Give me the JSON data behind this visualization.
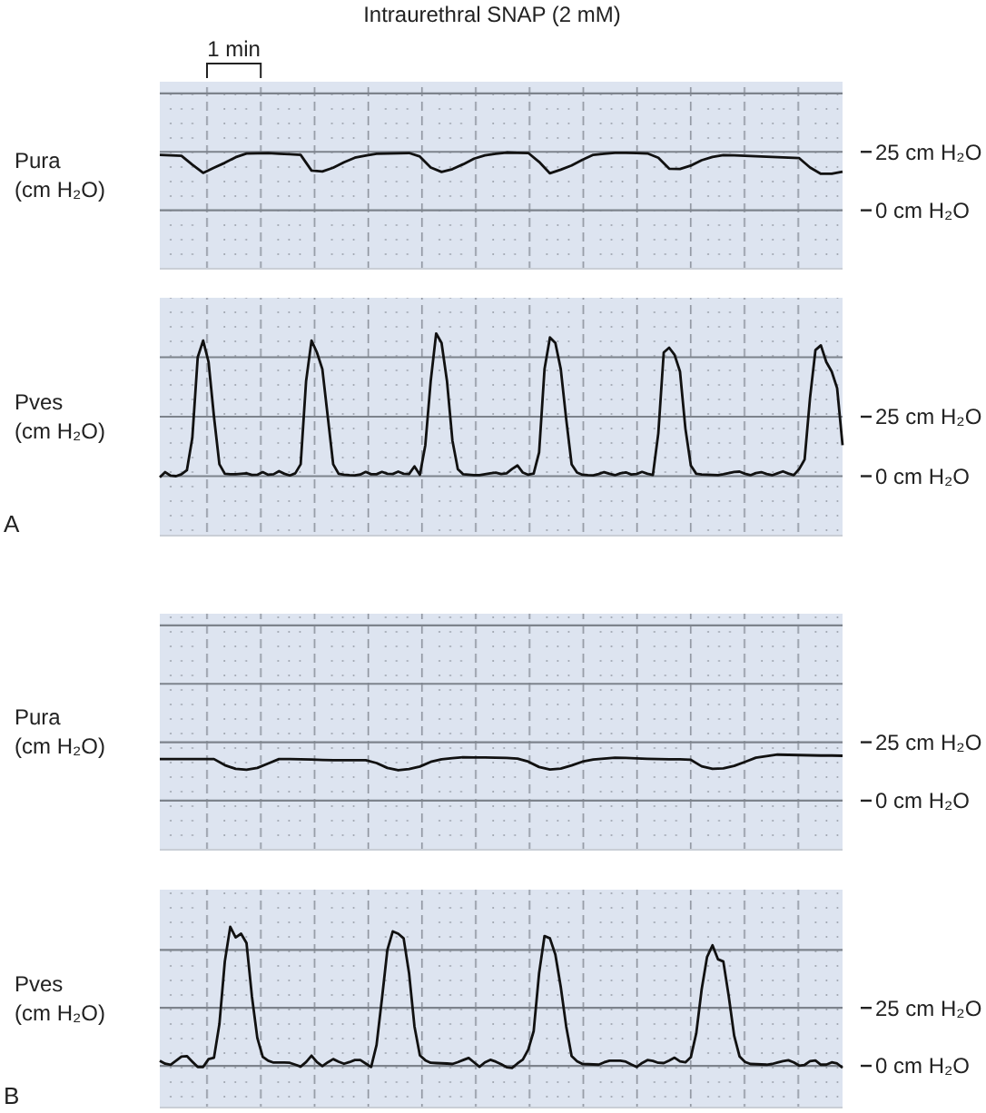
{
  "chart_data": [
    {
      "type": "line",
      "title": "Intraurethral SNAP (2 mM)",
      "ylabel": "Pura\n(cm H₂O)",
      "annotations": [
        "1 min"
      ],
      "grid": "y",
      "tick_labels": "y",
      "ylim": [
        -25,
        55
      ],
      "categories": [
        null,
        null,
        null,
        null,
        null,
        null,
        null,
        null,
        null,
        null,
        null,
        null,
        null,
        null,
        null,
        null,
        null,
        null,
        null,
        null,
        null,
        null,
        null,
        null,
        null,
        null,
        null,
        null,
        null,
        null,
        null,
        null,
        null,
        null,
        null,
        null,
        null,
        null,
        null,
        null,
        null,
        null,
        null,
        null,
        null,
        null,
        null,
        null,
        null,
        null,
        null,
        null,
        null,
        null,
        null,
        null,
        null,
        null,
        null,
        null,
        null,
        null,
        null,
        null
      ],
      "yticks": [
        {
          "value": 50,
          "label": null
        },
        {
          "value": 25,
          "label": "25 cm H₂O"
        },
        {
          "value": 0,
          "label": "0 cm H₂O"
        }
      ],
      "series": [
        {
          "color": "#111111",
          "values": [
            23.7,
            23.5,
            23.3,
            19.5,
            16.0,
            18.2,
            20.3,
            22.7,
            24.3,
            24.4,
            24.5,
            24.2,
            24.0,
            23.7,
            17.0,
            16.6,
            18.2,
            20.5,
            22.5,
            23.4,
            24.2,
            24.3,
            24.4,
            24.5,
            23.0,
            18.3,
            16.4,
            17.6,
            19.7,
            22.1,
            23.5,
            24.2,
            24.7,
            24.6,
            24.5,
            20.7,
            15.8,
            17.4,
            19.2,
            21.6,
            23.7,
            24.2,
            24.6,
            24.6,
            24.5,
            24.3,
            22.5,
            17.8,
            17.7,
            19.1,
            21.4,
            22.8,
            23.6,
            23.5,
            23.3,
            23.1,
            22.9,
            22.7,
            22.5,
            22.3,
            18.3,
            15.6,
            15.6,
            16.5
          ]
        }
      ]
    },
    {
      "type": "line",
      "ylabel": "Pves\n(cm H₂O)",
      "annotations": [
        "A"
      ],
      "grid": "y",
      "tick_labels": "y",
      "ylim": [
        -25,
        75
      ],
      "categories": [
        null,
        null,
        null,
        null,
        null,
        null,
        null,
        null,
        null,
        null,
        null,
        null,
        null,
        null,
        null,
        null,
        null,
        null,
        null,
        null,
        null,
        null,
        null,
        null,
        null,
        null,
        null,
        null,
        null,
        null,
        null,
        null,
        null,
        null,
        null,
        null,
        null,
        null,
        null,
        null,
        null,
        null,
        null,
        null,
        null,
        null,
        null,
        null,
        null,
        null,
        null,
        null,
        null,
        null,
        null,
        null,
        null,
        null,
        null,
        null,
        null,
        null,
        null,
        null,
        null,
        null,
        null,
        null,
        null,
        null,
        null,
        null,
        null,
        null,
        null,
        null,
        null,
        null,
        null,
        null,
        null,
        null,
        null,
        null,
        null,
        null,
        null,
        null,
        null,
        null,
        null,
        null,
        null,
        null,
        null,
        null,
        null,
        null,
        null,
        null,
        null,
        null,
        null,
        null,
        null,
        null,
        null,
        null,
        null,
        null,
        null,
        null,
        null,
        null,
        null,
        null,
        null,
        null,
        null,
        null,
        null,
        null,
        null,
        null,
        null,
        null,
        null
      ],
      "yticks": [
        {
          "value": 50,
          "label": null
        },
        {
          "value": 25,
          "label": "25 cm H₂O"
        },
        {
          "value": 0,
          "label": "0 cm H₂O"
        }
      ],
      "series": [
        {
          "color": "#111111",
          "values": [
            -0.5,
            1.7,
            0.2,
            0.0,
            0.8,
            2.5,
            16,
            50,
            57,
            48,
            25,
            5,
            1,
            0.8,
            0.8,
            1.0,
            1.2,
            0.5,
            0.6,
            1.7,
            0.6,
            0.8,
            2.1,
            1.0,
            0.3,
            1.2,
            5,
            40,
            57,
            52,
            45,
            25,
            5,
            1.0,
            0.6,
            0.4,
            0.3,
            0.7,
            1.8,
            0.8,
            0.8,
            1.8,
            1.0,
            0.9,
            1.9,
            1.0,
            0.9,
            4.1,
            0.6,
            13,
            40,
            60,
            56,
            40,
            15,
            3,
            0.8,
            0.6,
            0.4,
            0.4,
            0.8,
            1.2,
            1.5,
            0.9,
            1.2,
            3.0,
            4.5,
            1.5,
            0.6,
            1.1,
            10,
            45,
            58.3,
            56,
            45,
            24,
            5,
            1.5,
            0.6,
            0.4,
            0.3,
            0.9,
            1.7,
            1.0,
            0.4,
            1.2,
            1.6,
            0.7,
            0.9,
            1.8,
            1.0,
            0.5,
            18,
            52,
            54,
            51,
            44,
            20,
            4.5,
            1.0,
            0.7,
            0.6,
            0.5,
            0.4,
            0.8,
            1.3,
            1.8,
            1.9,
            1.0,
            0.4,
            1.3,
            1.7,
            0.9,
            0.4,
            1.2,
            2.0,
            1.1,
            0.4,
            3,
            7,
            33,
            53,
            55,
            48,
            44,
            37,
            13
          ]
        }
      ]
    },
    {
      "type": "line",
      "ylabel": "Pura\n(cm H₂O)",
      "grid": "y",
      "tick_labels": "y",
      "ylim": [
        -21,
        80
      ],
      "categories": [
        null,
        null,
        null,
        null,
        null,
        null,
        null,
        null,
        null,
        null,
        null,
        null,
        null,
        null,
        null,
        null,
        null,
        null,
        null,
        null,
        null,
        null,
        null,
        null,
        null,
        null,
        null,
        null,
        null,
        null,
        null,
        null,
        null,
        null,
        null,
        null,
        null,
        null,
        null,
        null,
        null,
        null,
        null,
        null,
        null,
        null,
        null,
        null,
        null,
        null,
        null,
        null,
        null,
        null,
        null,
        null,
        null,
        null,
        null,
        null,
        null,
        null,
        null,
        null
      ],
      "yticks": [
        {
          "value": 75,
          "label": null
        },
        {
          "value": 50,
          "label": null
        },
        {
          "value": 25,
          "label": "25 cm H₂O"
        },
        {
          "value": 0,
          "label": "0 cm H₂O"
        }
      ],
      "series": [
        {
          "color": "#111111",
          "values": [
            17.8,
            17.8,
            17.8,
            17.8,
            17.8,
            17.8,
            15.2,
            13.6,
            13.2,
            14.0,
            15.9,
            17.8,
            17.8,
            17.7,
            17.6,
            17.4,
            17.3,
            17.3,
            17.3,
            17.3,
            16.1,
            14.0,
            13.0,
            13.5,
            14.6,
            16.6,
            17.7,
            18.2,
            18.6,
            18.5,
            18.5,
            18.4,
            18.3,
            18.0,
            16.7,
            14.4,
            13.3,
            13.7,
            15.1,
            16.7,
            17.6,
            18.0,
            18.4,
            18.3,
            18.1,
            17.9,
            17.8,
            17.7,
            17.7,
            17.5,
            14.7,
            13.6,
            13.8,
            14.9,
            16.6,
            18.4,
            19.1,
            19.7,
            19.6,
            19.5,
            19.4,
            19.3,
            19.3,
            19.2
          ]
        }
      ]
    },
    {
      "type": "line",
      "ylabel": "Pves\n(cm H₂O)",
      "annotations": [
        "B"
      ],
      "grid": "y",
      "tick_labels": "y",
      "ylim": [
        -18,
        76
      ],
      "categories": [
        null,
        null,
        null,
        null,
        null,
        null,
        null,
        null,
        null,
        null,
        null,
        null,
        null,
        null,
        null,
        null,
        null,
        null,
        null,
        null,
        null,
        null,
        null,
        null,
        null,
        null,
        null,
        null,
        null,
        null,
        null,
        null,
        null,
        null,
        null,
        null,
        null,
        null,
        null,
        null,
        null,
        null,
        null,
        null,
        null,
        null,
        null,
        null,
        null,
        null,
        null,
        null,
        null,
        null,
        null,
        null,
        null,
        null,
        null,
        null,
        null,
        null,
        null,
        null,
        null,
        null,
        null,
        null,
        null,
        null,
        null,
        null,
        null,
        null,
        null,
        null,
        null,
        null,
        null,
        null,
        null,
        null,
        null,
        null,
        null,
        null,
        null,
        null,
        null,
        null,
        null,
        null,
        null,
        null,
        null,
        null,
        null,
        null,
        null,
        null,
        null,
        null,
        null,
        null,
        null,
        null,
        null,
        null,
        null,
        null,
        null,
        null,
        null,
        null,
        null,
        null,
        null,
        null,
        null,
        null,
        null,
        null,
        null,
        null,
        null,
        null,
        null
      ],
      "yticks": [
        {
          "value": 50,
          "label": null
        },
        {
          "value": 25,
          "label": "25 cm H₂O"
        },
        {
          "value": 0,
          "label": "0 cm H₂O"
        }
      ],
      "series": [
        {
          "color": "#111111",
          "values": [
            2.2,
            0.9,
            0.5,
            2.2,
            4.0,
            4.2,
            1.8,
            -0.5,
            -0.5,
            2.9,
            3.5,
            18,
            45,
            60,
            55.4,
            57,
            53,
            30,
            12,
            3.9,
            2.2,
            1.4,
            1.4,
            1.4,
            1.3,
            0.5,
            -0.3,
            1.6,
            4.4,
            1.6,
            -0.1,
            1.5,
            2.9,
            1.8,
            0.9,
            1.6,
            2.5,
            2.5,
            1.0,
            -0.5,
            9,
            29,
            50,
            58,
            57,
            55,
            40,
            17,
            4.5,
            2.4,
            1.3,
            1.2,
            1.1,
            1.0,
            0.8,
            1.6,
            2.5,
            3.4,
            1.5,
            -0.4,
            1.5,
            2.6,
            1.8,
            0.7,
            -0.6,
            -0.9,
            1.0,
            2.7,
            7,
            15,
            40,
            56,
            55,
            48,
            34,
            17,
            4.2,
            2.0,
            0.8,
            0.7,
            0.6,
            0.5,
            1.5,
            2.2,
            2.2,
            2.2,
            1.8,
            0.6,
            -0.5,
            1.2,
            2.5,
            2.1,
            1.3,
            1.2,
            2.3,
            3.5,
            1.9,
            1.5,
            3.7,
            14,
            33,
            47,
            52,
            46,
            45,
            30,
            13,
            4.0,
            1.7,
            0.8,
            0.7,
            0.6,
            0.5,
            0.8,
            1.4,
            2.0,
            2.4,
            1.5,
            0.1,
            0.4,
            2.0,
            2.3,
            0.5,
            0.5,
            1.5,
            1.0,
            -0.8
          ]
        }
      ]
    }
  ]
}
